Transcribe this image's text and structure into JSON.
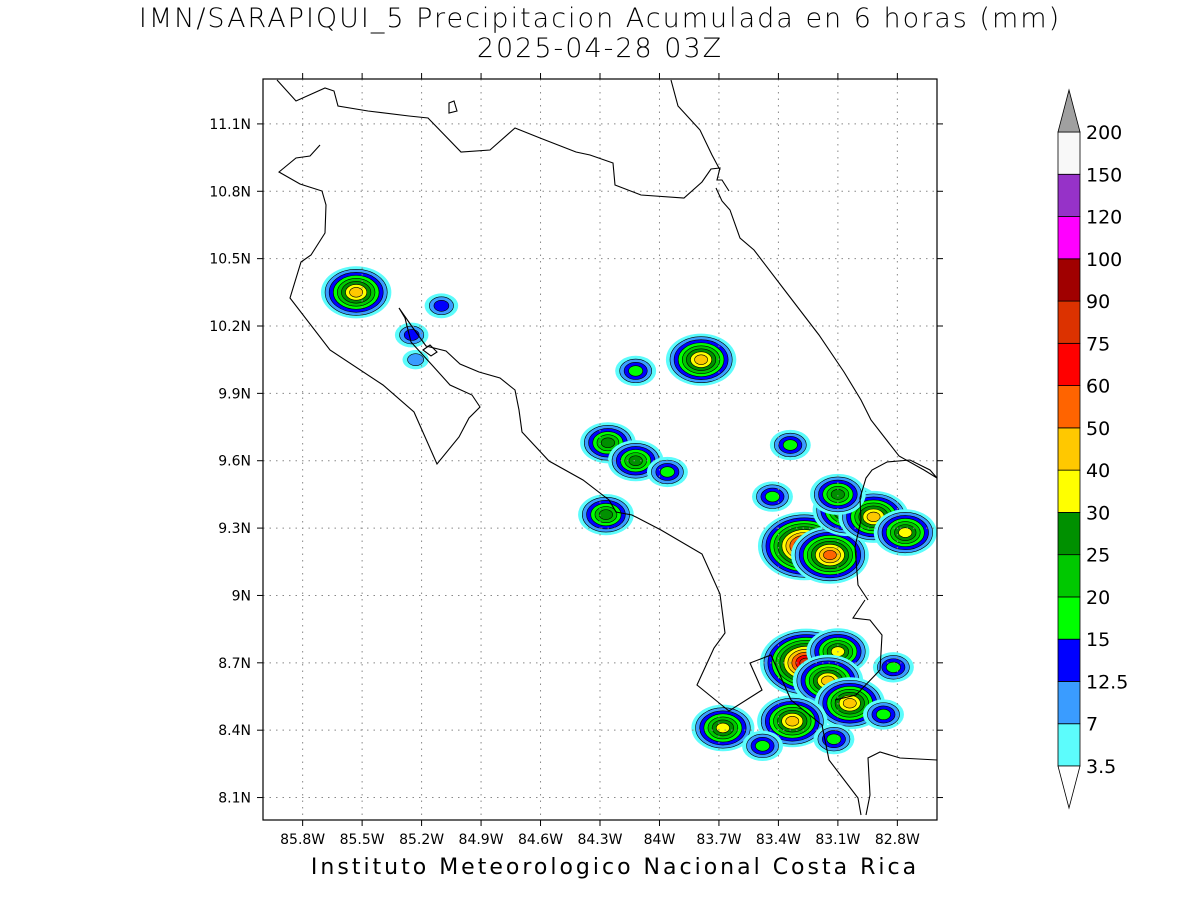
{
  "title": {
    "line1": "IMN/SARAPIQUI_5 Precipitacion Acumulada en 6 horas (mm)",
    "line2": "2025-04-28 03Z"
  },
  "footer": "Instituto Meteorologico Nacional Costa Rica",
  "map": {
    "lon_range": [
      -86.0,
      -82.6
    ],
    "lat_range": [
      8.0,
      11.3
    ],
    "lon_ticks": [
      {
        "value": -85.8,
        "label": "85.8W"
      },
      {
        "value": -85.5,
        "label": "85.5W"
      },
      {
        "value": -85.2,
        "label": "85.2W"
      },
      {
        "value": -84.9,
        "label": "84.9W"
      },
      {
        "value": -84.6,
        "label": "84.6W"
      },
      {
        "value": -84.3,
        "label": "84.3W"
      },
      {
        "value": -84.0,
        "label": "84W"
      },
      {
        "value": -83.7,
        "label": "83.7W"
      },
      {
        "value": -83.4,
        "label": "83.4W"
      },
      {
        "value": -83.1,
        "label": "83.1W"
      },
      {
        "value": -82.8,
        "label": "82.8W"
      }
    ],
    "lat_ticks": [
      {
        "value": 8.1,
        "label": "8.1N"
      },
      {
        "value": 8.4,
        "label": "8.4N"
      },
      {
        "value": 8.7,
        "label": "8.7N"
      },
      {
        "value": 9.0,
        "label": "9N"
      },
      {
        "value": 9.3,
        "label": "9.3N"
      },
      {
        "value": 9.6,
        "label": "9.6N"
      },
      {
        "value": 9.9,
        "label": "9.9N"
      },
      {
        "value": 10.2,
        "label": "10.2N"
      },
      {
        "value": 10.5,
        "label": "10.5N"
      },
      {
        "value": 10.8,
        "label": "10.8N"
      },
      {
        "value": 11.1,
        "label": "11.1N"
      }
    ],
    "grid": true,
    "coastline_color": "#000000",
    "precip_cells": [
      {
        "lon": -85.53,
        "lat": 10.35,
        "max": 40
      },
      {
        "lon": -85.25,
        "lat": 10.16,
        "max": 12.5
      },
      {
        "lon": -85.1,
        "lat": 10.29,
        "max": 12.5
      },
      {
        "lon": -85.23,
        "lat": 10.05,
        "max": 7
      },
      {
        "lon": -84.12,
        "lat": 10.0,
        "max": 15
      },
      {
        "lon": -83.79,
        "lat": 10.05,
        "max": 40
      },
      {
        "lon": -84.26,
        "lat": 9.68,
        "max": 25
      },
      {
        "lon": -84.12,
        "lat": 9.6,
        "max": 25
      },
      {
        "lon": -83.96,
        "lat": 9.55,
        "max": 15
      },
      {
        "lon": -84.27,
        "lat": 9.36,
        "max": 25
      },
      {
        "lon": -83.43,
        "lat": 9.44,
        "max": 15
      },
      {
        "lon": -83.34,
        "lat": 9.67,
        "max": 15
      },
      {
        "lon": -83.27,
        "lat": 9.22,
        "max": 75
      },
      {
        "lon": -83.14,
        "lat": 9.18,
        "max": 50
      },
      {
        "lon": -83.05,
        "lat": 9.38,
        "max": 40
      },
      {
        "lon": -82.92,
        "lat": 9.35,
        "max": 40
      },
      {
        "lon": -82.76,
        "lat": 9.28,
        "max": 30
      },
      {
        "lon": -83.1,
        "lat": 9.45,
        "max": 25
      },
      {
        "lon": -83.26,
        "lat": 8.7,
        "max": 75
      },
      {
        "lon": -83.1,
        "lat": 8.75,
        "max": 30
      },
      {
        "lon": -83.15,
        "lat": 8.62,
        "max": 40
      },
      {
        "lon": -83.04,
        "lat": 8.52,
        "max": 40
      },
      {
        "lon": -83.33,
        "lat": 8.44,
        "max": 40
      },
      {
        "lon": -83.68,
        "lat": 8.41,
        "max": 30
      },
      {
        "lon": -83.48,
        "lat": 8.33,
        "max": 15
      },
      {
        "lon": -83.12,
        "lat": 8.36,
        "max": 15
      },
      {
        "lon": -82.87,
        "lat": 8.47,
        "max": 15
      },
      {
        "lon": -82.82,
        "lat": 8.68,
        "max": 15
      }
    ]
  },
  "colorbar": {
    "labels": [
      "3.5",
      "7",
      "12.5",
      "15",
      "20",
      "25",
      "30",
      "40",
      "50",
      "60",
      "75",
      "90",
      "100",
      "120",
      "150",
      "200"
    ],
    "colors": [
      "#5cfcfc",
      "#3a9cff",
      "#0000ff",
      "#00ff00",
      "#00c800",
      "#009000",
      "#ffff00",
      "#ffc800",
      "#ff6400",
      "#ff0000",
      "#dc3200",
      "#a00000",
      "#ff00ff",
      "#9632c8",
      "#f8f8f8"
    ],
    "over_color": "#a0a0a0",
    "under_color": "#ffffff"
  }
}
